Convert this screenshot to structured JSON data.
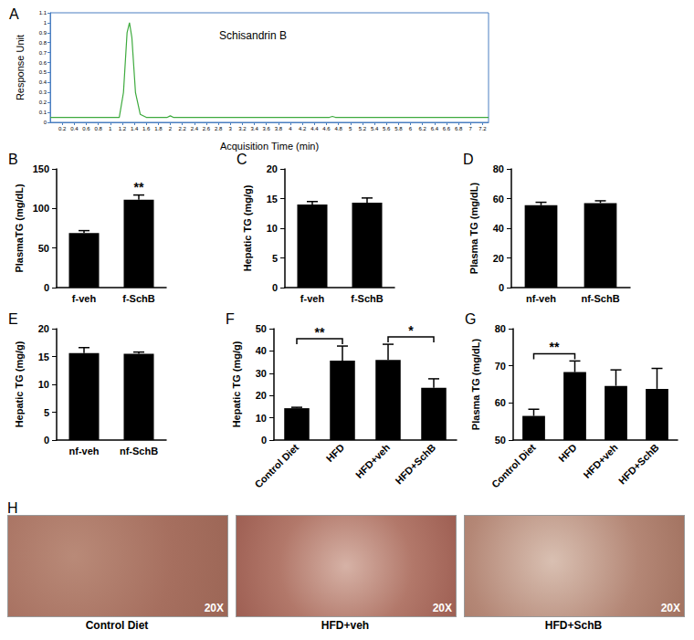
{
  "chart_data": [
    {
      "panel": "A",
      "type": "line",
      "title": "Schisandrin B",
      "x_label": "Acquisition Time (min)",
      "y_label": "Response Unit",
      "x": [
        0,
        1.15,
        1.22,
        1.28,
        1.32,
        1.36,
        1.42,
        1.5,
        1.6,
        1.95,
        2.0,
        2.05,
        4.65,
        4.7,
        4.75,
        7.3
      ],
      "values": [
        0.05,
        0.05,
        0.3,
        0.9,
        1.0,
        0.85,
        0.3,
        0.08,
        0.05,
        0.05,
        0.065,
        0.05,
        0.05,
        0.06,
        0.05,
        0.05
      ],
      "color": "#3daa3d",
      "xlim": [
        0,
        7.3
      ],
      "xticks": [
        0.2,
        0.4,
        0.6,
        0.8,
        1,
        1.2,
        1.4,
        1.6,
        1.8,
        2,
        2.2,
        2.4,
        2.6,
        2.8,
        3,
        3.2,
        3.4,
        3.6,
        3.8,
        4,
        4.2,
        4.4,
        4.6,
        4.8,
        5,
        5.2,
        5.4,
        5.6,
        5.8,
        6,
        6.2,
        6.4,
        6.6,
        6.8,
        7,
        7.2
      ],
      "ylim": [
        0,
        1.1
      ],
      "yticks": [
        0,
        0.1,
        0.2,
        0.3,
        0.4,
        0.5,
        0.6,
        0.7,
        0.8,
        0.9,
        1,
        1.1
      ],
      "grid": false
    },
    {
      "panel": "B",
      "type": "bar",
      "y_label": "PlasmaTG (mg/dL)",
      "categories": [
        "f-veh",
        "f-SchB"
      ],
      "values": [
        69,
        111
      ],
      "errors": [
        3,
        6
      ],
      "color": "#000000",
      "ylim": [
        0,
        150
      ],
      "yticks": [
        0,
        50,
        100,
        150
      ],
      "grid": false,
      "significance": [
        {
          "text": "**",
          "from": "f-SchB",
          "to": "f-SchB"
        }
      ]
    },
    {
      "panel": "C",
      "type": "bar",
      "y_label": "Hepatic TG (mg/g)",
      "categories": [
        "f-veh",
        "f-SchB"
      ],
      "values": [
        14.0,
        14.3
      ],
      "errors": [
        0.5,
        0.8
      ],
      "color": "#000000",
      "ylim": [
        0,
        20
      ],
      "yticks": [
        0,
        5,
        10,
        15,
        20
      ],
      "grid": false,
      "significance": []
    },
    {
      "panel": "D",
      "type": "bar",
      "y_label": "Plasma TG (mg/dL)",
      "categories": [
        "nf-veh",
        "nf-SchB"
      ],
      "values": [
        55.5,
        57
      ],
      "errors": [
        2,
        1.5
      ],
      "color": "#000000",
      "ylim": [
        0,
        80
      ],
      "yticks": [
        0,
        20,
        40,
        60,
        80
      ],
      "grid": false,
      "significance": []
    },
    {
      "panel": "E",
      "type": "bar",
      "y_label": "Hepatic TG (mg/g)",
      "categories": [
        "nf-veh",
        "nf-SchB"
      ],
      "values": [
        15.6,
        15.5
      ],
      "errors": [
        1.0,
        0.3
      ],
      "color": "#000000",
      "ylim": [
        0,
        20
      ],
      "yticks": [
        0,
        5,
        10,
        15,
        20
      ],
      "grid": false,
      "significance": []
    },
    {
      "panel": "F",
      "type": "bar",
      "y_label": "Hepatic TG (mg/g)",
      "categories": [
        "Control Diet",
        "HFD",
        "HFD+veh",
        "HFD+SchB"
      ],
      "values": [
        14.3,
        35.7,
        36,
        23.5
      ],
      "errors": [
        0.4,
        6.5,
        7,
        4
      ],
      "color": "#000000",
      "ylim": [
        0,
        50
      ],
      "yticks": [
        0,
        10,
        20,
        30,
        40,
        50
      ],
      "grid": false,
      "significance": [
        {
          "text": "**",
          "from": "Control Diet",
          "to": "HFD"
        },
        {
          "text": "*",
          "from": "HFD+veh",
          "to": "HFD+SchB"
        }
      ]
    },
    {
      "panel": "G",
      "type": "bar",
      "y_label": "Plasma TG (mg/dL)",
      "categories": [
        "Control Diet",
        "HFD",
        "HFD+veh",
        "HFD+SchB"
      ],
      "values": [
        56.5,
        68.3,
        64.6,
        63.8
      ],
      "errors": [
        1.8,
        3,
        4.3,
        5.5
      ],
      "color": "#000000",
      "ylim": [
        50,
        80
      ],
      "yticks": [
        50,
        60,
        70,
        80
      ],
      "grid": false,
      "significance": [
        {
          "text": "**",
          "from": "Control Diet",
          "to": "HFD"
        }
      ]
    }
  ],
  "panel_h": {
    "panel": "H",
    "images": [
      {
        "label": "Control Diet",
        "magnification": "20X"
      },
      {
        "label": "HFD+veh",
        "magnification": "20X"
      },
      {
        "label": "HFD+SchB",
        "magnification": "20X"
      }
    ]
  }
}
